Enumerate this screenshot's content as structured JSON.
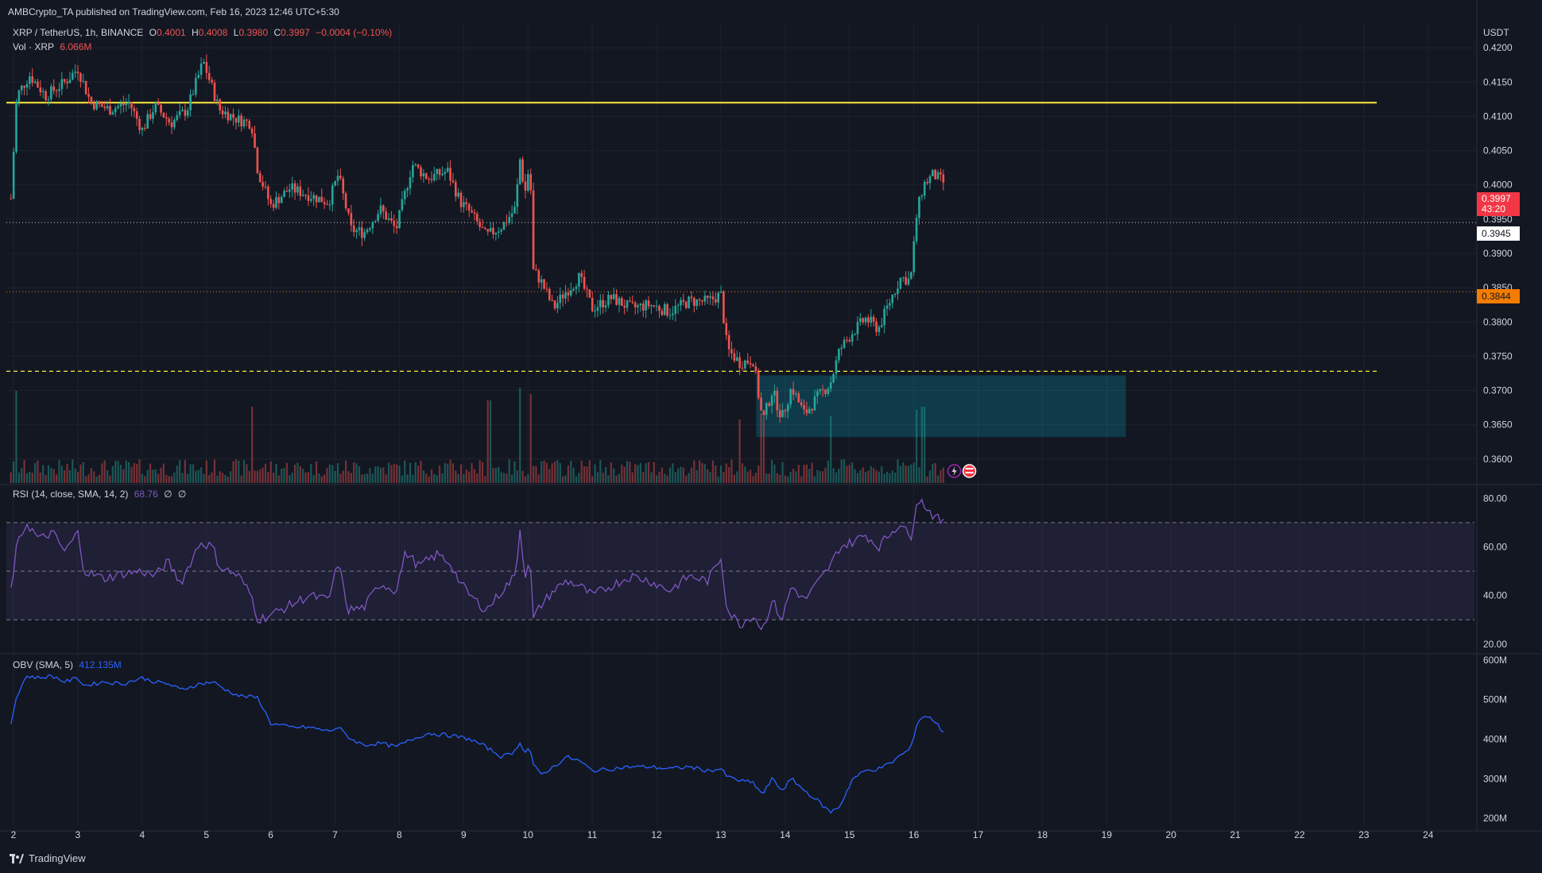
{
  "header": {
    "publisher": "AMBCrypto_TA published on TradingView.com, Feb 16, 2023 12:46 UTC+5:30"
  },
  "symbol": {
    "name": "XRP / TetherUS, 1h, BINANCE",
    "open_label": "O",
    "open": "0.4001",
    "high_label": "H",
    "high": "0.4008",
    "low_label": "L",
    "low": "0.3980",
    "close_label": "C",
    "close": "0.3997",
    "change": "−0.0004 (−0.10%)"
  },
  "volume": {
    "label": "Vol · XRP",
    "value": "6.066M"
  },
  "rsi": {
    "label": "RSI (14, close, SMA, 14, 2)",
    "value": "68.76",
    "extra1": "∅",
    "extra2": "∅"
  },
  "obv": {
    "label": "OBV (SMA, 5)",
    "value": "412.135M"
  },
  "price_axis": {
    "currency": "USDT",
    "current_price": "0.3997",
    "countdown": "43:20",
    "line_1": "0.3945",
    "line_2": "0.3844"
  },
  "brand": {
    "name": "TradingView"
  },
  "colors": {
    "up": "#26a69a",
    "down": "#ef5350",
    "resistance": "#ffeb3b",
    "orange": "#f57c00",
    "zone": "#00bcd4",
    "rsi": "#7e57c2",
    "obv": "#2962ff"
  },
  "chart_data": {
    "type": "candlestick",
    "x_ticks": [
      "2",
      "3",
      "4",
      "5",
      "6",
      "7",
      "8",
      "9",
      "10",
      "11",
      "12",
      "13",
      "14",
      "15",
      "16",
      "17",
      "18",
      "19",
      "20",
      "21",
      "22",
      "23",
      "24"
    ],
    "price_ticks": [
      0.42,
      0.415,
      0.41,
      0.405,
      0.4,
      0.395,
      0.39,
      0.385,
      0.38,
      0.375,
      0.37,
      0.365,
      0.36
    ],
    "price_range": [
      0.3565,
      0.4235
    ],
    "rsi_ticks": [
      80,
      60,
      40,
      20
    ],
    "rsi_range": [
      17,
      85
    ],
    "obv_ticks_labels": [
      "600M",
      "500M",
      "400M",
      "300M",
      "200M"
    ],
    "obv_ticks": [
      600,
      500,
      400,
      300,
      200
    ],
    "obv_range": [
      180,
      610
    ],
    "levels": {
      "resistance": 0.412,
      "dotted_white": 0.3945,
      "dotted_orange": 0.3844,
      "dashed_yellow": 0.3728
    },
    "zone": {
      "from_day": 13.55,
      "to_day": 19.3,
      "top": 0.3722,
      "bottom": 0.3632
    },
    "price_path": [
      [
        1.96,
        0.398
      ],
      [
        2.05,
        0.413
      ],
      [
        2.25,
        0.416
      ],
      [
        2.5,
        0.413
      ],
      [
        2.8,
        0.415
      ],
      [
        3.0,
        0.417
      ],
      [
        3.2,
        0.412
      ],
      [
        3.5,
        0.411
      ],
      [
        3.8,
        0.412
      ],
      [
        4.0,
        0.408
      ],
      [
        4.2,
        0.4115
      ],
      [
        4.45,
        0.409
      ],
      [
        4.7,
        0.411
      ],
      [
        4.95,
        0.418
      ],
      [
        5.2,
        0.411
      ],
      [
        5.5,
        0.4095
      ],
      [
        5.7,
        0.409
      ],
      [
        5.8,
        0.402
      ],
      [
        6.0,
        0.397
      ],
      [
        6.3,
        0.3995
      ],
      [
        6.6,
        0.3985
      ],
      [
        6.9,
        0.3975
      ],
      [
        7.05,
        0.4015
      ],
      [
        7.25,
        0.3935
      ],
      [
        7.45,
        0.393
      ],
      [
        7.7,
        0.3965
      ],
      [
        7.95,
        0.3935
      ],
      [
        8.2,
        0.403
      ],
      [
        8.45,
        0.401
      ],
      [
        8.75,
        0.402
      ],
      [
        8.95,
        0.3975
      ],
      [
        9.1,
        0.396
      ],
      [
        9.35,
        0.3925
      ],
      [
        9.6,
        0.394
      ],
      [
        9.8,
        0.3965
      ],
      [
        9.88,
        0.404
      ],
      [
        9.95,
        0.3985
      ],
      [
        10.03,
        0.4035
      ],
      [
        10.08,
        0.3875
      ],
      [
        10.2,
        0.386
      ],
      [
        10.4,
        0.382
      ],
      [
        10.55,
        0.384
      ],
      [
        10.8,
        0.3865
      ],
      [
        11.0,
        0.382
      ],
      [
        11.3,
        0.3835
      ],
      [
        11.6,
        0.382
      ],
      [
        11.9,
        0.3825
      ],
      [
        12.2,
        0.3815
      ],
      [
        12.5,
        0.383
      ],
      [
        12.8,
        0.383
      ],
      [
        13.0,
        0.384
      ],
      [
        13.1,
        0.376
      ],
      [
        13.3,
        0.374
      ],
      [
        13.5,
        0.3745
      ],
      [
        13.65,
        0.3655
      ],
      [
        13.8,
        0.37
      ],
      [
        13.95,
        0.366
      ],
      [
        14.1,
        0.3705
      ],
      [
        14.3,
        0.3665
      ],
      [
        14.5,
        0.369
      ],
      [
        14.7,
        0.371
      ],
      [
        14.85,
        0.376
      ],
      [
        15.05,
        0.3785
      ],
      [
        15.25,
        0.3805
      ],
      [
        15.45,
        0.379
      ],
      [
        15.65,
        0.3835
      ],
      [
        15.8,
        0.3865
      ],
      [
        15.95,
        0.386
      ],
      [
        16.05,
        0.396
      ],
      [
        16.15,
        0.4
      ],
      [
        16.3,
        0.4015
      ],
      [
        16.45,
        0.4005
      ],
      [
        16.5,
        0.3997
      ]
    ],
    "rsi_path": [
      [
        1.96,
        42
      ],
      [
        2.05,
        60
      ],
      [
        2.2,
        70
      ],
      [
        2.4,
        63
      ],
      [
        2.6,
        66
      ],
      [
        2.8,
        58
      ],
      [
        3.0,
        66
      ],
      [
        3.1,
        50
      ],
      [
        3.4,
        47
      ],
      [
        3.7,
        49
      ],
      [
        4.0,
        50
      ],
      [
        4.2,
        48
      ],
      [
        4.4,
        54
      ],
      [
        4.6,
        45
      ],
      [
        4.9,
        62
      ],
      [
        5.1,
        60
      ],
      [
        5.2,
        52
      ],
      [
        5.5,
        48
      ],
      [
        5.7,
        40
      ],
      [
        5.8,
        30
      ],
      [
        6.0,
        32
      ],
      [
        6.3,
        36
      ],
      [
        6.6,
        40
      ],
      [
        6.9,
        38
      ],
      [
        7.05,
        54
      ],
      [
        7.2,
        34
      ],
      [
        7.45,
        35
      ],
      [
        7.7,
        45
      ],
      [
        7.95,
        42
      ],
      [
        8.1,
        58
      ],
      [
        8.3,
        52
      ],
      [
        8.6,
        57
      ],
      [
        8.8,
        53
      ],
      [
        8.95,
        45
      ],
      [
        9.1,
        40
      ],
      [
        9.35,
        34
      ],
      [
        9.6,
        42
      ],
      [
        9.8,
        48
      ],
      [
        9.88,
        68
      ],
      [
        9.95,
        48
      ],
      [
        10.03,
        56
      ],
      [
        10.08,
        30
      ],
      [
        10.2,
        36
      ],
      [
        10.4,
        42
      ],
      [
        10.6,
        46
      ],
      [
        10.8,
        44
      ],
      [
        11.0,
        40
      ],
      [
        11.3,
        44
      ],
      [
        11.6,
        48
      ],
      [
        11.9,
        46
      ],
      [
        12.2,
        42
      ],
      [
        12.5,
        48
      ],
      [
        12.8,
        46
      ],
      [
        13.0,
        56
      ],
      [
        13.1,
        34
      ],
      [
        13.3,
        28
      ],
      [
        13.5,
        32
      ],
      [
        13.65,
        26
      ],
      [
        13.8,
        38
      ],
      [
        13.95,
        30
      ],
      [
        14.1,
        44
      ],
      [
        14.3,
        38
      ],
      [
        14.5,
        45
      ],
      [
        14.7,
        52
      ],
      [
        14.85,
        60
      ],
      [
        15.05,
        62
      ],
      [
        15.25,
        65
      ],
      [
        15.45,
        60
      ],
      [
        15.65,
        66
      ],
      [
        15.8,
        70
      ],
      [
        15.95,
        63
      ],
      [
        16.05,
        80
      ],
      [
        16.15,
        78
      ],
      [
        16.3,
        73
      ],
      [
        16.45,
        70
      ],
      [
        16.5,
        68.8
      ]
    ],
    "obv_path": [
      [
        1.96,
        440
      ],
      [
        2.05,
        510
      ],
      [
        2.2,
        560
      ],
      [
        2.4,
        555
      ],
      [
        2.6,
        560
      ],
      [
        2.8,
        545
      ],
      [
        3.0,
        555
      ],
      [
        3.1,
        535
      ],
      [
        3.4,
        545
      ],
      [
        3.7,
        540
      ],
      [
        4.0,
        555
      ],
      [
        4.2,
        545
      ],
      [
        4.4,
        540
      ],
      [
        4.6,
        525
      ],
      [
        4.9,
        540
      ],
      [
        5.1,
        545
      ],
      [
        5.3,
        525
      ],
      [
        5.5,
        510
      ],
      [
        5.8,
        505
      ],
      [
        6.0,
        440
      ],
      [
        6.3,
        430
      ],
      [
        6.6,
        430
      ],
      [
        6.9,
        420
      ],
      [
        7.05,
        430
      ],
      [
        7.25,
        400
      ],
      [
        7.45,
        385
      ],
      [
        7.7,
        390
      ],
      [
        7.95,
        380
      ],
      [
        8.2,
        400
      ],
      [
        8.45,
        415
      ],
      [
        8.75,
        410
      ],
      [
        8.95,
        405
      ],
      [
        9.1,
        400
      ],
      [
        9.35,
        380
      ],
      [
        9.6,
        355
      ],
      [
        9.8,
        370
      ],
      [
        9.88,
        395
      ],
      [
        9.95,
        365
      ],
      [
        10.03,
        380
      ],
      [
        10.08,
        335
      ],
      [
        10.2,
        310
      ],
      [
        10.4,
        330
      ],
      [
        10.6,
        355
      ],
      [
        10.8,
        345
      ],
      [
        11.0,
        320
      ],
      [
        11.3,
        325
      ],
      [
        11.6,
        330
      ],
      [
        11.9,
        330
      ],
      [
        12.2,
        325
      ],
      [
        12.5,
        330
      ],
      [
        12.8,
        320
      ],
      [
        13.0,
        325
      ],
      [
        13.1,
        305
      ],
      [
        13.3,
        295
      ],
      [
        13.5,
        290
      ],
      [
        13.65,
        260
      ],
      [
        13.8,
        300
      ],
      [
        13.95,
        270
      ],
      [
        14.1,
        300
      ],
      [
        14.3,
        270
      ],
      [
        14.5,
        245
      ],
      [
        14.7,
        215
      ],
      [
        14.85,
        230
      ],
      [
        15.05,
        300
      ],
      [
        15.25,
        320
      ],
      [
        15.45,
        325
      ],
      [
        15.65,
        340
      ],
      [
        15.8,
        360
      ],
      [
        15.95,
        375
      ],
      [
        16.05,
        440
      ],
      [
        16.15,
        460
      ],
      [
        16.3,
        450
      ],
      [
        16.45,
        420
      ],
      [
        16.5,
        412
      ]
    ],
    "volume_spikes": [
      [
        2.05,
        0.95
      ],
      [
        9.88,
        1.0
      ],
      [
        10.03,
        0.9
      ],
      [
        13.65,
        0.6
      ],
      [
        14.7,
        0.55
      ],
      [
        16.05,
        0.65
      ],
      [
        16.15,
        0.7
      ],
      [
        5.7,
        0.7
      ],
      [
        9.4,
        0.8
      ],
      [
        13.3,
        0.5
      ]
    ]
  }
}
